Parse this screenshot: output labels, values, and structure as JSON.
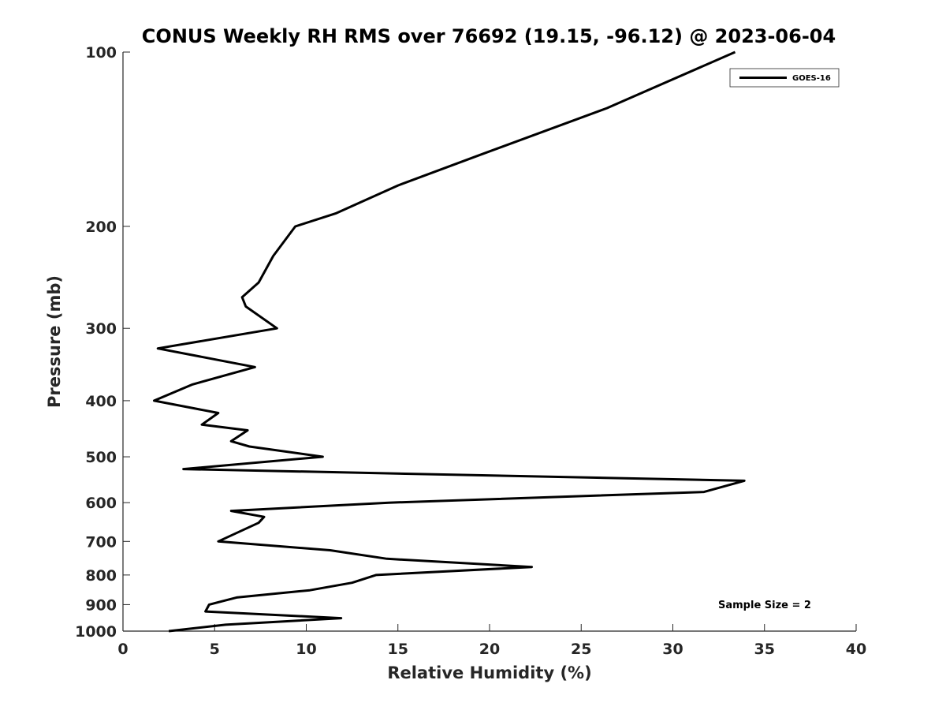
{
  "chart_data": {
    "type": "line",
    "title": "CONUS Weekly RH RMS over 76692 (19.15, -96.12) @ 2023-06-04",
    "xlabel": "Relative Humidity (%)",
    "ylabel": "Pressure (mb)",
    "xlim": [
      0,
      40
    ],
    "ylim": [
      100,
      1000
    ],
    "y_scale": "log",
    "y_reversed": true,
    "x_ticks": [
      0,
      5,
      10,
      15,
      20,
      25,
      30,
      35,
      40
    ],
    "y_ticks": [
      100,
      200,
      300,
      400,
      500,
      600,
      700,
      800,
      900,
      1000
    ],
    "grid": false,
    "legend_position": "top-right",
    "annotation": "Sample Size = 2",
    "series": [
      {
        "name": "GOES-16",
        "color": "#000000",
        "points": [
          [
            33.4,
            100
          ],
          [
            26.4,
            125
          ],
          [
            19.6,
            150
          ],
          [
            15.0,
            170
          ],
          [
            11.6,
            190
          ],
          [
            9.4,
            200
          ],
          [
            8.2,
            225
          ],
          [
            7.4,
            250
          ],
          [
            6.5,
            265
          ],
          [
            6.7,
            275
          ],
          [
            8.4,
            300
          ],
          [
            1.9,
            325
          ],
          [
            7.2,
            350
          ],
          [
            3.8,
            375
          ],
          [
            1.7,
            400
          ],
          [
            5.2,
            420
          ],
          [
            4.3,
            440
          ],
          [
            6.8,
            450
          ],
          [
            5.9,
            470
          ],
          [
            6.9,
            480
          ],
          [
            10.9,
            500
          ],
          [
            3.3,
            525
          ],
          [
            33.9,
            550
          ],
          [
            31.7,
            575
          ],
          [
            14.5,
            600
          ],
          [
            5.9,
            620
          ],
          [
            7.7,
            635
          ],
          [
            7.4,
            650
          ],
          [
            5.2,
            700
          ],
          [
            11.3,
            725
          ],
          [
            14.4,
            750
          ],
          [
            22.3,
            775
          ],
          [
            13.8,
            800
          ],
          [
            12.5,
            825
          ],
          [
            10.2,
            850
          ],
          [
            6.2,
            875
          ],
          [
            4.7,
            900
          ],
          [
            4.5,
            925
          ],
          [
            11.9,
            950
          ],
          [
            5.6,
            975
          ],
          [
            2.5,
            1000
          ]
        ]
      }
    ]
  }
}
